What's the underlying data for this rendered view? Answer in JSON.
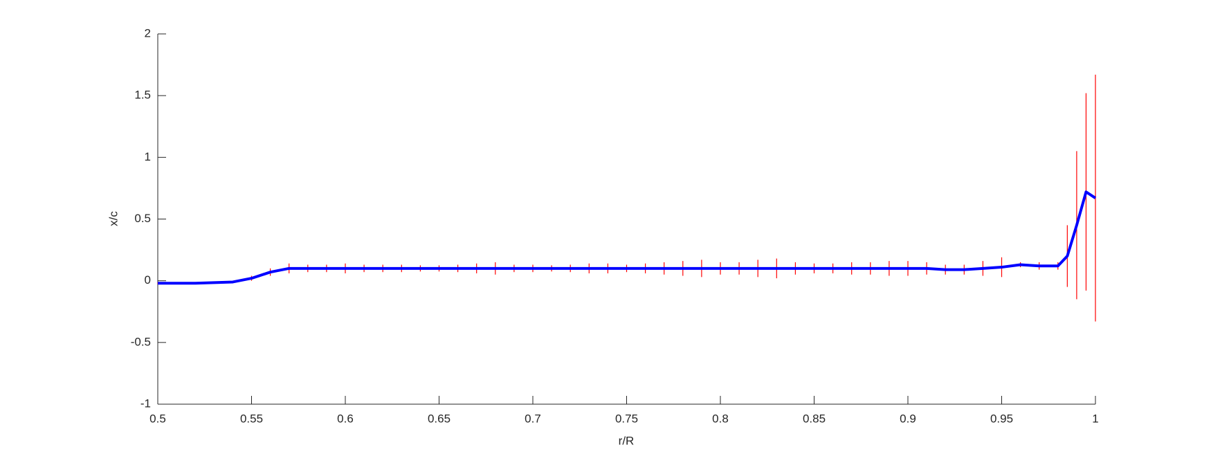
{
  "chart_data": {
    "type": "errorbar-line",
    "xlabel": "r/R",
    "ylabel": "x/c",
    "x": [
      0.5,
      0.51,
      0.52,
      0.53,
      0.54,
      0.55,
      0.56,
      0.57,
      0.58,
      0.59,
      0.6,
      0.61,
      0.62,
      0.63,
      0.64,
      0.65,
      0.66,
      0.67,
      0.68,
      0.69,
      0.7,
      0.71,
      0.72,
      0.73,
      0.74,
      0.75,
      0.76,
      0.77,
      0.78,
      0.79,
      0.8,
      0.81,
      0.82,
      0.83,
      0.84,
      0.85,
      0.86,
      0.87,
      0.88,
      0.89,
      0.9,
      0.91,
      0.92,
      0.93,
      0.94,
      0.95,
      0.96,
      0.97,
      0.98,
      0.985,
      0.99,
      0.995,
      1.0
    ],
    "series": [
      {
        "color": "#0000ff",
        "error_color": "#ff0000",
        "values": [
          -0.02,
          -0.02,
          -0.02,
          -0.015,
          -0.01,
          0.02,
          0.07,
          0.1,
          0.1,
          0.1,
          0.1,
          0.1,
          0.1,
          0.1,
          0.1,
          0.1,
          0.1,
          0.1,
          0.1,
          0.1,
          0.1,
          0.1,
          0.1,
          0.1,
          0.1,
          0.1,
          0.1,
          0.1,
          0.1,
          0.1,
          0.1,
          0.1,
          0.1,
          0.1,
          0.1,
          0.1,
          0.1,
          0.1,
          0.1,
          0.1,
          0.1,
          0.1,
          0.09,
          0.09,
          0.1,
          0.11,
          0.13,
          0.12,
          0.12,
          0.2,
          0.45,
          0.72,
          0.67
        ],
        "errors": [
          0.005,
          0.005,
          0.005,
          0.005,
          0.01,
          0.02,
          0.03,
          0.04,
          0.03,
          0.03,
          0.04,
          0.03,
          0.03,
          0.03,
          0.025,
          0.025,
          0.03,
          0.04,
          0.05,
          0.03,
          0.03,
          0.025,
          0.03,
          0.04,
          0.04,
          0.03,
          0.04,
          0.05,
          0.06,
          0.07,
          0.05,
          0.05,
          0.07,
          0.08,
          0.05,
          0.04,
          0.04,
          0.05,
          0.05,
          0.06,
          0.06,
          0.05,
          0.04,
          0.04,
          0.06,
          0.08,
          0.02,
          0.03,
          0.03,
          0.25,
          0.6,
          0.8,
          1.0
        ]
      }
    ],
    "xlim": [
      0.5,
      1
    ],
    "xticks": [
      0.5,
      0.55,
      0.6,
      0.65,
      0.7,
      0.75,
      0.8,
      0.85,
      0.9,
      0.95,
      1
    ],
    "ylim": [
      -1,
      2
    ],
    "yticks": [
      -1,
      -0.5,
      0,
      0.5,
      1,
      1.5,
      2
    ],
    "grid": false
  }
}
